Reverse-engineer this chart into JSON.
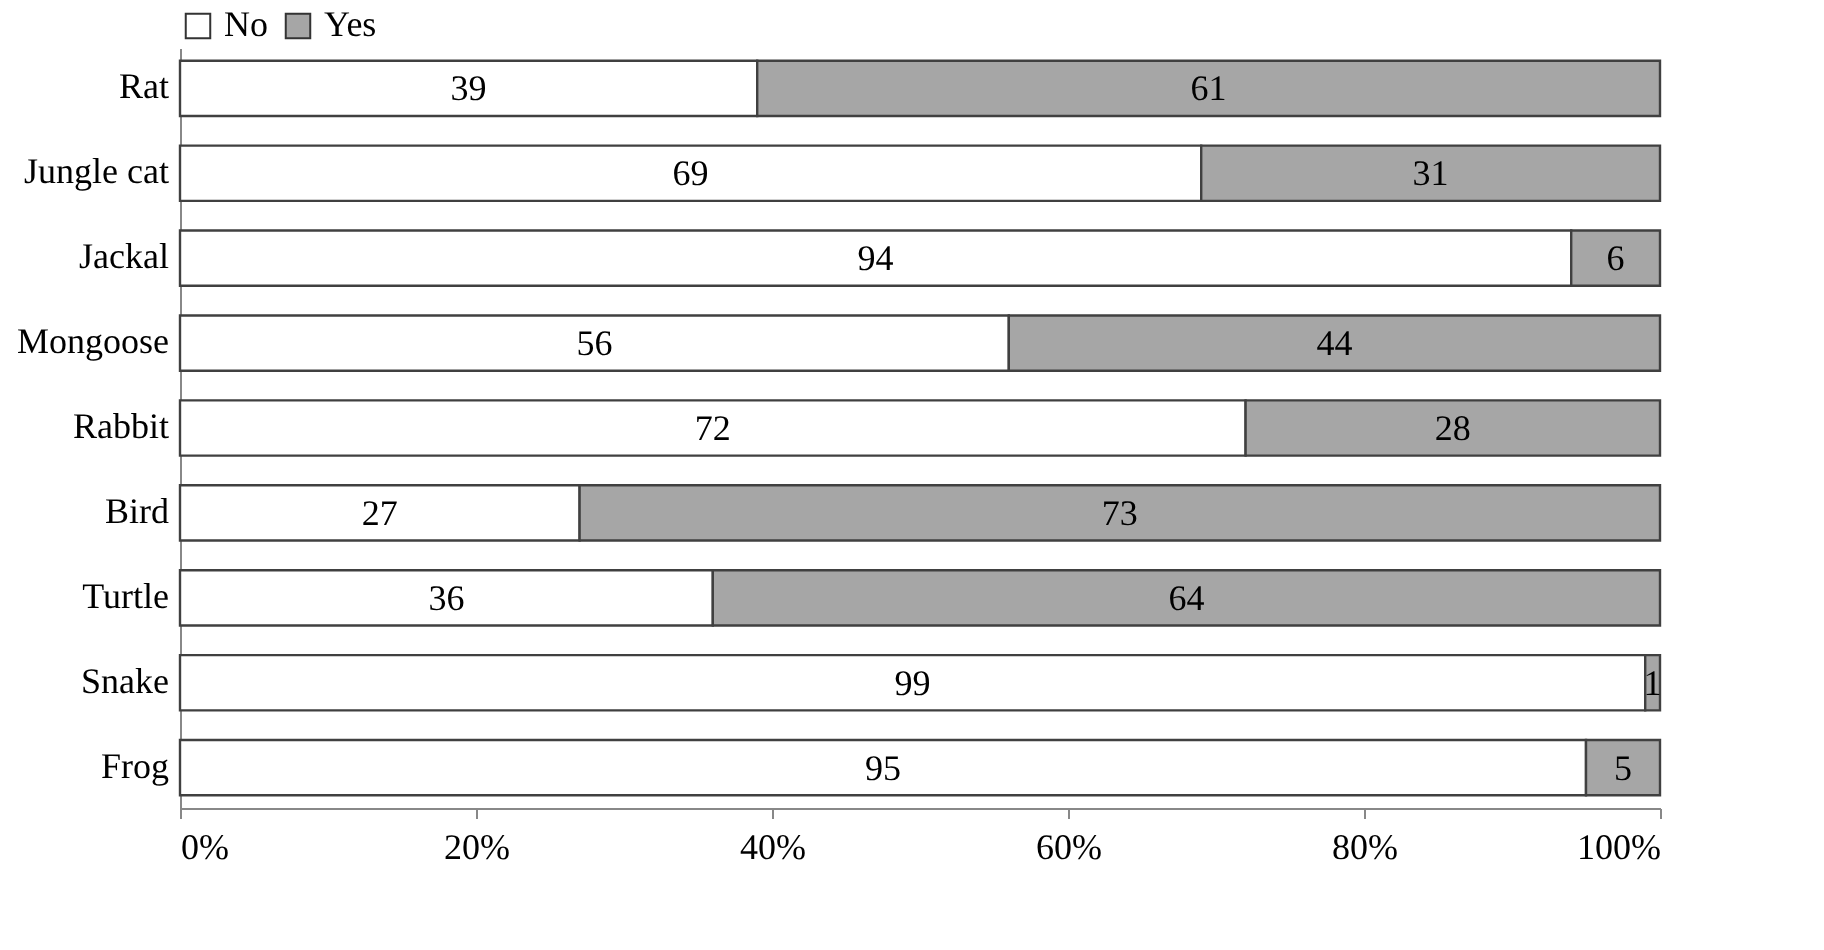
{
  "chart_data": {
    "type": "bar",
    "orientation": "horizontal",
    "stacked": true,
    "categories": [
      "Rat",
      "Jungle cat",
      "Jackal",
      "Mongoose",
      "Rabbit",
      "Bird",
      "Turtle",
      "Snake",
      "Frog"
    ],
    "series": [
      {
        "name": "No",
        "color": "#ffffff",
        "values": [
          39,
          69,
          94,
          56,
          72,
          27,
          36,
          99,
          95
        ]
      },
      {
        "name": "Yes",
        "color": "#a6a6a6",
        "values": [
          61,
          31,
          6,
          44,
          28,
          73,
          64,
          1,
          5
        ]
      }
    ],
    "xlim": [
      0,
      100
    ],
    "xticks": [
      {
        "value": 0,
        "label": "0%"
      },
      {
        "value": 20,
        "label": "20%"
      },
      {
        "value": 40,
        "label": "40%"
      },
      {
        "value": 60,
        "label": "60%"
      },
      {
        "value": 80,
        "label": "80%"
      },
      {
        "value": 100,
        "label": "100%"
      }
    ],
    "data_labels": true,
    "legend": "top",
    "grid": false
  }
}
